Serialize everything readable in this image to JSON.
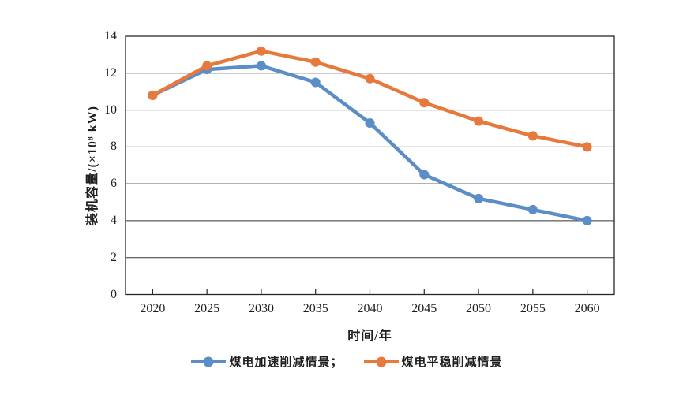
{
  "chart_data": {
    "type": "line",
    "x": [
      "2020",
      "2025",
      "2030",
      "2035",
      "2040",
      "2045",
      "2050",
      "2055",
      "2060"
    ],
    "series": [
      {
        "name": "煤电加速削减情景",
        "color": "#5B8DC6",
        "values": [
          10.8,
          12.2,
          12.4,
          11.5,
          9.3,
          6.5,
          5.2,
          4.6,
          4.0
        ]
      },
      {
        "name": "煤电平稳削减情景",
        "color": "#E8793D",
        "values": [
          10.8,
          12.4,
          13.2,
          12.6,
          11.7,
          10.4,
          9.4,
          8.6,
          8.0
        ]
      }
    ],
    "xlabel": "时间/年",
    "ylabel": "装机容量/(×10⁸ kW)",
    "ylim": [
      0,
      14
    ],
    "yticks": [
      0,
      2,
      4,
      6,
      8,
      10,
      12,
      14
    ],
    "grid": "horizontal",
    "legend_position": "bottom",
    "axis_color": "#262626",
    "background": "#ffffff"
  },
  "legend": {
    "items": [
      {
        "label": "煤电加速削减情景；",
        "color": "#5B8DC6"
      },
      {
        "label": "煤电平稳削减情景",
        "color": "#E8793D"
      }
    ]
  }
}
